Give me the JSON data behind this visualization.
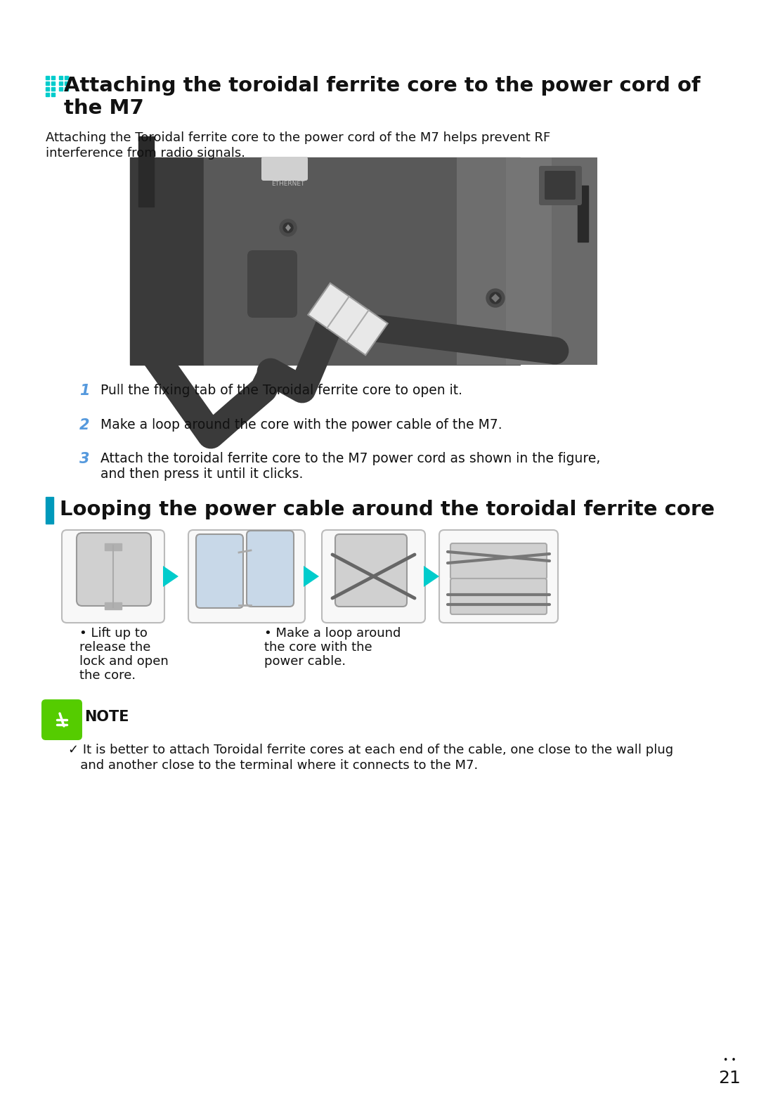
{
  "bg_color": "#ffffff",
  "text_color": "#111111",
  "cyan_color": "#00cccc",
  "step_num_color": "#5599dd",
  "note_green": "#55cc00",
  "title2_bar_color": "#0099bb",
  "page": "21",
  "title1_line1": "Attaching the toroidal ferrite core to the power cord of",
  "title1_line2": "the M7",
  "subtitle_line1": "Attaching the Toroidal ferrite core to the power cord of the M7 helps prevent RF",
  "subtitle_line2": "interference from radio signals.",
  "step1": "Pull the fixing tab of the Toroidal ferrite core to open it.",
  "step2": "Make a loop around the core with the power cable of the M7.",
  "step3_line1": "Attach the toroidal ferrite core to the M7 power cord as shown in the figure,",
  "step3_line2": "and then press it until it clicks.",
  "title2": "Looping the power cable around the toroidal ferrite core",
  "bullet1_line1": "• Lift up to",
  "bullet1_line2": "release the",
  "bullet1_line3": "lock and open",
  "bullet1_line4": "the core.",
  "bullet2_line1": "• Make a loop around",
  "bullet2_line2": "the core with the",
  "bullet2_line3": "power cable.",
  "note_label": "NOTE",
  "note_line1": "✓ It is better to attach Toroidal ferrite cores at each end of the cable, one close to the wall plug",
  "note_line2": "   and another close to the terminal where it connects to the M7.",
  "ethernet_label": "ETHERNET",
  "speaker_colors": {
    "outer_bg": "#7a7a7a",
    "main_body": "#636363",
    "left_panel": "#3a3a3a",
    "center_panel": "#595959",
    "right_panel": "#6a6a6a",
    "dark_recess": "#2a2a2a",
    "cable_dark": "#3a3a3a",
    "ferrite_white": "#e8e8e8",
    "ferrite_gray": "#bbbbbb"
  }
}
